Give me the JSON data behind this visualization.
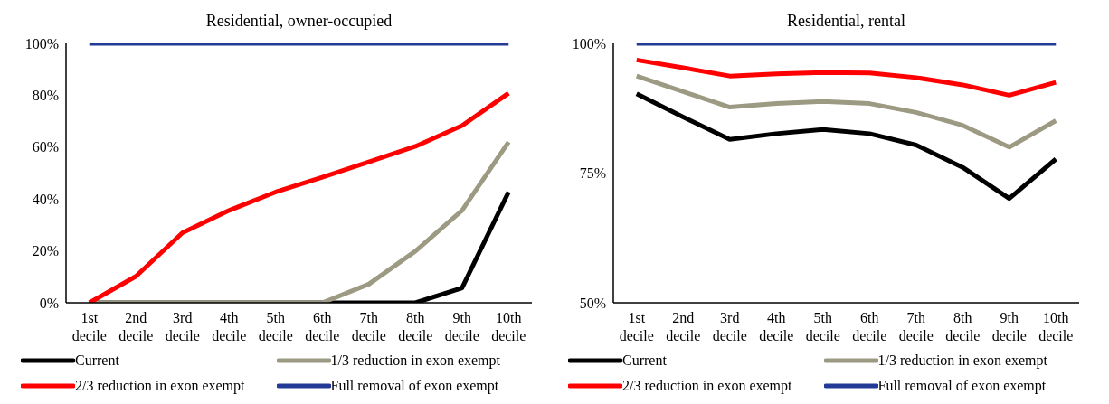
{
  "chart_data": [
    {
      "type": "line",
      "title": "Residential, owner-occupied",
      "categories": [
        "1st decile",
        "2nd decile",
        "3rd decile",
        "4th decile",
        "5th decile",
        "6th decile",
        "7th decile",
        "8th decile",
        "9th decile",
        "10th decile"
      ],
      "ylim": [
        0,
        100
      ],
      "yticks": [
        {
          "value": 0,
          "label": "0%"
        },
        {
          "value": 20,
          "label": "20%"
        },
        {
          "value": 40,
          "label": "40%"
        },
        {
          "value": 60,
          "label": "60%"
        },
        {
          "value": 80,
          "label": "80%"
        },
        {
          "value": 100,
          "label": "100%"
        }
      ],
      "grid": false,
      "legend": "bottom",
      "marker": "none",
      "line_style": "solid",
      "series": [
        {
          "name": "Current",
          "color": "#000000",
          "values": [
            0,
            0,
            0,
            0,
            0,
            0,
            0,
            0,
            5.7,
            42.7
          ]
        },
        {
          "name": "1/3 reduction in exon exempt",
          "color": "#9c9a82",
          "values": [
            0,
            0,
            0,
            0,
            0,
            0,
            7.2,
            19.9,
            35.6,
            62
          ]
        },
        {
          "name": "2/3 reduction in exon exempt",
          "color": "#ff0000",
          "values": [
            0,
            10.2,
            27,
            35.6,
            42.7,
            48.4,
            54.3,
            60.3,
            68.3,
            80.8
          ]
        },
        {
          "name": "Full removal of exon exempt",
          "color": "#233a96",
          "values": [
            100,
            100,
            100,
            100,
            100,
            100,
            100,
            100,
            100,
            100
          ]
        }
      ]
    },
    {
      "type": "line",
      "title": "Residential, rental",
      "categories": [
        "1st decile",
        "2nd decile",
        "3rd decile",
        "4th decile",
        "5th decile",
        "6th decile",
        "7th decile",
        "8th decile",
        "9th decile",
        "10th decile"
      ],
      "ylim": [
        50,
        100
      ],
      "yticks": [
        {
          "value": 50,
          "label": "50%"
        },
        {
          "value": 75,
          "label": "75%"
        },
        {
          "value": 100,
          "label": "100%"
        }
      ],
      "grid": false,
      "legend": "bottom",
      "marker": "none",
      "line_style": "solid",
      "series": [
        {
          "name": "Current",
          "color": "#000000",
          "values": [
            90.3,
            85.8,
            81.5,
            82.6,
            83.4,
            82.6,
            80.4,
            76.1,
            70.1,
            77.7
          ]
        },
        {
          "name": "1/3 reduction in exon exempt",
          "color": "#9c9a82",
          "values": [
            93.7,
            90.7,
            87.7,
            88.4,
            88.8,
            88.4,
            86.7,
            84.2,
            80.0,
            85.1
          ]
        },
        {
          "name": "2/3 reduction in exon exempt",
          "color": "#ff0000",
          "values": [
            96.8,
            95.3,
            93.7,
            94.1,
            94.4,
            94.3,
            93.4,
            92.0,
            90.0,
            92.5
          ]
        },
        {
          "name": "Full removal of exon exempt",
          "color": "#233a96",
          "values": [
            100,
            100,
            100,
            100,
            100,
            100,
            100,
            100,
            100,
            100
          ]
        }
      ]
    }
  ]
}
